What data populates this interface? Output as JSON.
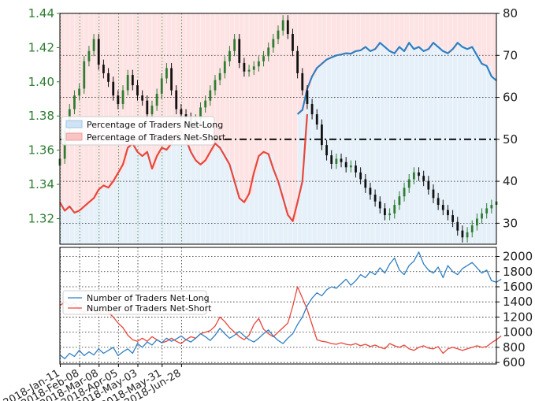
{
  "colors": {
    "long": "#2f7fc1",
    "short": "#e8473c",
    "short_fill": "#fde0e0",
    "long_fill": "#e3eef8",
    "bull": "#2e7d32",
    "bear": "#111111",
    "price_axis": "#2e7d32"
  },
  "chart_data": [
    {
      "type": "line",
      "panel": "top",
      "x_ticks": [
        "2018-Jan-11",
        "2018-Feb-08",
        "2018-Mar-08",
        "2018-Apr-05",
        "2018-May-03",
        "2018-May-31",
        "2018-Jun-28"
      ],
      "price_axis": {
        "ticks": [
          "1.32",
          "1.34",
          "1.36",
          "1.38",
          "1.40",
          "1.42",
          "1.44"
        ],
        "ylim": [
          1.305,
          1.44
        ]
      },
      "percent_axis": {
        "ticks": [
          "30",
          "40",
          "50",
          "60",
          "70",
          "80"
        ],
        "ylim": [
          25,
          80
        ]
      },
      "reference_line": 50,
      "legend": [
        "Percentage of Traders Net-Long",
        "Percentage of Traders Net-Short"
      ],
      "price_candles_close": [
        1.355,
        1.372,
        1.384,
        1.392,
        1.396,
        1.412,
        1.418,
        1.425,
        1.41,
        1.405,
        1.4,
        1.392,
        1.387,
        1.395,
        1.404,
        1.398,
        1.392,
        1.389,
        1.381,
        1.386,
        1.393,
        1.402,
        1.408,
        1.395,
        1.384,
        1.381,
        1.379,
        1.372,
        1.378,
        1.385,
        1.389,
        1.395,
        1.401,
        1.405,
        1.412,
        1.418,
        1.425,
        1.411,
        1.406,
        1.407,
        1.409,
        1.412,
        1.415,
        1.42,
        1.425,
        1.43,
        1.436,
        1.428,
        1.418,
        1.405,
        1.395,
        1.387,
        1.381,
        1.375,
        1.363,
        1.357,
        1.352,
        1.355,
        1.353,
        1.35,
        1.351,
        1.347,
        1.343,
        1.338,
        1.334,
        1.33,
        1.326,
        1.322,
        1.323,
        1.328,
        1.333,
        1.338,
        1.343,
        1.347,
        1.345,
        1.342,
        1.337,
        1.332,
        1.328,
        1.325,
        1.322,
        1.318,
        1.313,
        1.309,
        1.312,
        1.316,
        1.32,
        1.323,
        1.326,
        1.328,
        1.33
      ],
      "series": [
        {
          "name": "Percentage of Traders Net-Long",
          "values": [
            null,
            null,
            null,
            null,
            null,
            null,
            null,
            null,
            null,
            null,
            null,
            null,
            null,
            null,
            null,
            null,
            null,
            null,
            null,
            null,
            null,
            null,
            null,
            null,
            null,
            null,
            null,
            null,
            null,
            null,
            null,
            null,
            null,
            null,
            null,
            null,
            null,
            null,
            null,
            null,
            null,
            null,
            null,
            null,
            null,
            null,
            null,
            null,
            null,
            56,
            57,
            62,
            65,
            67,
            68,
            69,
            69.5,
            70,
            70.2,
            70.5,
            70.4,
            71,
            71.2,
            72,
            71,
            71.5,
            73,
            72,
            71,
            70.5,
            72,
            71,
            73,
            71.5,
            72,
            71,
            71.5,
            73,
            72,
            71,
            70.5,
            71.5,
            73,
            72,
            71.5,
            72,
            70,
            68,
            67.5,
            65,
            64
          ]
        },
        {
          "name": "Percentage of Traders Net-Short",
          "values": [
            35,
            33,
            34,
            32.5,
            33,
            34,
            35,
            36,
            38,
            39,
            38.5,
            40,
            42,
            44,
            48,
            49,
            47,
            46,
            47,
            43,
            46,
            48,
            47.5,
            49,
            51,
            52,
            50,
            47,
            45,
            44,
            45,
            47,
            49,
            48,
            46,
            44,
            40,
            36,
            35,
            37,
            42,
            46,
            47,
            46.5,
            43,
            40,
            36,
            32,
            30.5,
            35,
            40,
            56,
            null,
            null,
            null,
            null,
            null,
            null,
            null,
            null,
            null,
            null,
            null,
            null,
            null,
            null,
            null,
            null,
            null,
            null,
            null,
            null,
            null,
            null,
            null,
            null,
            null,
            null,
            null,
            null,
            null,
            null,
            null,
            null,
            null,
            null,
            null,
            null,
            null,
            null,
            null
          ]
        }
      ]
    },
    {
      "type": "line",
      "panel": "bottom",
      "y_axis": {
        "ticks": [
          "600",
          "800",
          "1000",
          "1200",
          "1400",
          "1600",
          "1800",
          "2000"
        ],
        "ylim": [
          580,
          2120
        ]
      },
      "legend": [
        "Number of Traders Net-Long",
        "Number of Traders Net-Short"
      ],
      "series": [
        {
          "name": "Number of Traders Net-Long",
          "values": [
            700,
            650,
            720,
            680,
            760,
            690,
            740,
            700,
            780,
            720,
            760,
            800,
            690,
            740,
            780,
            720,
            850,
            800,
            870,
            830,
            900,
            860,
            920,
            880,
            910,
            950,
            900,
            870,
            920,
            980,
            940,
            890,
            960,
            1050,
            980,
            920,
            960,
            1010,
            950,
            900,
            870,
            920,
            980,
            1030,
            950,
            890,
            850,
            920,
            980,
            1100,
            1200,
            1350,
            1450,
            1520,
            1480,
            1560,
            1600,
            1580,
            1640,
            1700,
            1620,
            1680,
            1760,
            1720,
            1800,
            1760,
            1850,
            1780,
            1900,
            1980,
            1820,
            1760,
            1880,
            1940,
            2060,
            1900,
            1820,
            1780,
            1860,
            1720,
            1880,
            1800,
            1760,
            1840,
            1880,
            1920,
            1850,
            1780,
            1820,
            1680,
            1660,
            1700
          ]
        },
        {
          "name": "Number of Traders Net-Short",
          "values": [
            1350,
            1400,
            1350,
            1380,
            1300,
            1260,
            1320,
            1280,
            1240,
            1300,
            1260,
            1200,
            1120,
            1060,
            960,
            900,
            880,
            920,
            880,
            940,
            900,
            860,
            880,
            920,
            880,
            850,
            900,
            940,
            920,
            980,
            1000,
            1020,
            1080,
            1200,
            1140,
            1060,
            1000,
            940,
            900,
            960,
            1100,
            1180,
            1040,
            980,
            940,
            1000,
            1060,
            1120,
            1340,
            1600,
            1450,
            1300,
            1100,
            900,
            880,
            870,
            850,
            840,
            860,
            840,
            830,
            850,
            820,
            840,
            810,
            830,
            800,
            780,
            850,
            820,
            800,
            830,
            780,
            760,
            800,
            820,
            790,
            780,
            810,
            720,
            780,
            800,
            780,
            760,
            780,
            800,
            820,
            800,
            810,
            860,
            900,
            950
          ]
        }
      ]
    }
  ]
}
